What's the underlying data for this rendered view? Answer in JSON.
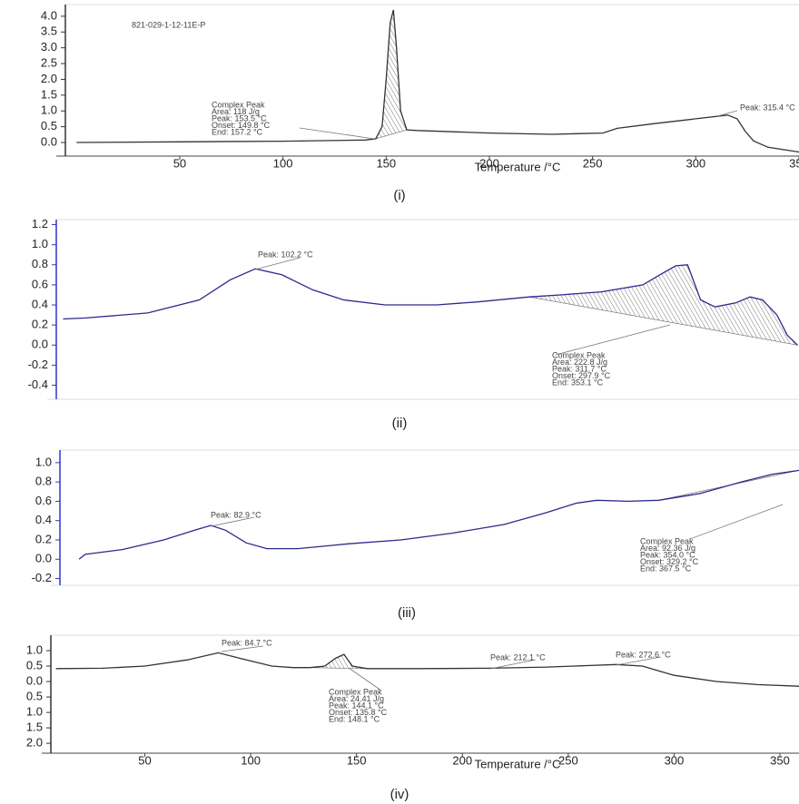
{
  "chart_data": [
    {
      "type": "line",
      "title": "821-029-1-12-11E-P",
      "xlabel": "Temperature /°C",
      "caption": "(i)",
      "color": "#333333",
      "x": [
        0,
        50,
        100,
        140,
        145,
        148,
        150,
        152,
        153.5,
        155,
        157,
        160,
        165,
        200,
        230,
        255,
        262,
        280,
        300,
        315.4,
        320,
        324,
        328,
        335,
        350
      ],
      "values": [
        0.0,
        0.02,
        0.04,
        0.08,
        0.12,
        0.5,
        2.0,
        3.8,
        4.2,
        3.0,
        1.0,
        0.4,
        0.38,
        0.3,
        0.26,
        0.3,
        0.45,
        0.6,
        0.75,
        0.87,
        0.75,
        0.35,
        0.05,
        -0.15,
        -0.3
      ],
      "xlim": [
        -5.4,
        350
      ],
      "ylim": [
        -0.43,
        4.37
      ],
      "xticks": [
        50,
        100,
        150,
        200,
        250,
        300,
        350
      ],
      "yticks": [
        {
          "value": 0,
          "label": "0.0"
        },
        0.5,
        {
          "value": 1,
          "label": "1.0"
        },
        1.5,
        {
          "value": 2,
          "label": "2.0"
        },
        2.5,
        {
          "value": 3,
          "label": "3.0"
        },
        3.5,
        {
          "value": 4,
          "label": "4.0"
        }
      ],
      "annotations": [
        [
          "Complex Peak",
          "Area: 118 J/g",
          "Peak: 153.5 °C",
          "Onset: 149.8 °C",
          "End: 157.2 °C"
        ],
        [
          "Peak: 315.4 °C"
        ]
      ]
    },
    {
      "type": "line",
      "caption": "(ii)",
      "color": "#2a2a8c",
      "x": [
        9,
        20,
        50,
        75,
        90,
        102.2,
        115,
        130,
        145,
        165,
        190,
        210,
        235,
        250,
        270,
        290,
        300,
        306,
        311.7,
        318,
        325,
        335,
        342,
        348,
        355,
        360,
        365
      ],
      "values": [
        0.26,
        0.27,
        0.32,
        0.45,
        0.65,
        0.76,
        0.7,
        0.55,
        0.45,
        0.4,
        0.4,
        0.43,
        0.48,
        0.5,
        0.53,
        0.6,
        0.72,
        0.79,
        0.8,
        0.45,
        0.38,
        0.42,
        0.48,
        0.45,
        0.3,
        0.1,
        0.0
      ],
      "xlim": [
        5.7,
        365.7
      ],
      "ylim": [
        -0.54,
        1.25
      ],
      "yticks": [
        -0.4,
        -0.2,
        {
          "value": 0,
          "label": "0.0"
        },
        0.2,
        0.4,
        0.6,
        0.8,
        {
          "value": 1,
          "label": "1.0"
        },
        1.2
      ],
      "annotations": [
        [
          "Peak: 102.2 °C"
        ],
        [
          "Complex Peak",
          "Area: 222.8 J/g",
          "Peak: 311.7 °C",
          "Onset: 297.9 °C",
          "End: 353.1 °C"
        ]
      ]
    },
    {
      "type": "line",
      "caption": "(iii)",
      "color": "#2a2a8c",
      "x": [
        19,
        22,
        40,
        60,
        75,
        82.9,
        90,
        100,
        110,
        125,
        140,
        150,
        175,
        200,
        225,
        245,
        260,
        270,
        285,
        300,
        320,
        340,
        355,
        368
      ],
      "values": [
        0.0,
        0.05,
        0.1,
        0.2,
        0.3,
        0.35,
        0.3,
        0.17,
        0.11,
        0.11,
        0.14,
        0.16,
        0.2,
        0.27,
        0.36,
        0.48,
        0.58,
        0.61,
        0.6,
        0.61,
        0.68,
        0.8,
        0.88,
        0.92
      ],
      "xlim": [
        9.7,
        368
      ],
      "ylim": [
        -0.27,
        1.13
      ],
      "yticks": [
        -0.2,
        {
          "value": 0,
          "label": "0.0"
        },
        0.2,
        0.4,
        0.6,
        0.8,
        {
          "value": 1,
          "label": "1.0"
        }
      ],
      "annotations": [
        [
          "Peak: 82.9 °C"
        ],
        [
          "Complex Peak",
          "Area: 92.36 J/g",
          "Peak: 354.0 °C",
          "Onset: 329.2 °C",
          "End: 367.5 °C"
        ]
      ]
    },
    {
      "type": "line",
      "xlabel": "Temperature /°C",
      "caption": "(iv)",
      "color": "#333333",
      "x": [
        8,
        30,
        50,
        70,
        84.7,
        95,
        110,
        120,
        128,
        135,
        140,
        144.1,
        148,
        155,
        180,
        212.1,
        240,
        260,
        272.6,
        285,
        300,
        320,
        340,
        359
      ],
      "values": [
        0.42,
        0.43,
        0.5,
        0.7,
        0.93,
        0.75,
        0.5,
        0.45,
        0.45,
        0.5,
        0.75,
        0.88,
        0.5,
        0.42,
        0.42,
        0.43,
        0.47,
        0.52,
        0.55,
        0.5,
        0.2,
        0.0,
        -0.1,
        -0.15
      ],
      "xlim": [
        5.6,
        359
      ],
      "ylim": [
        -2.32,
        1.5
      ],
      "xticks": [
        50,
        100,
        150,
        200,
        250,
        300,
        350
      ],
      "yticks": [
        {
          "value": 1,
          "label": "1.0"
        },
        0.5,
        {
          "value": 0,
          "label": "0.0"
        },
        {
          "value": -0.5,
          "label": "0.5"
        },
        {
          "value": -1,
          "label": "1.0"
        },
        {
          "value": -1.5,
          "label": "1.5"
        },
        {
          "value": -2,
          "label": "2.0"
        }
      ],
      "annotations": [
        [
          "Peak: 84.7 °C"
        ],
        [
          "Complex Peak",
          "Area: 24.41 J/g",
          "Peak: 144.1 °C",
          "Onset: 135.8 °C",
          "End: 148.1 °C"
        ],
        [
          "Peak: 212.1 °C"
        ],
        [
          "Peak: 272.6 °C"
        ]
      ]
    }
  ]
}
